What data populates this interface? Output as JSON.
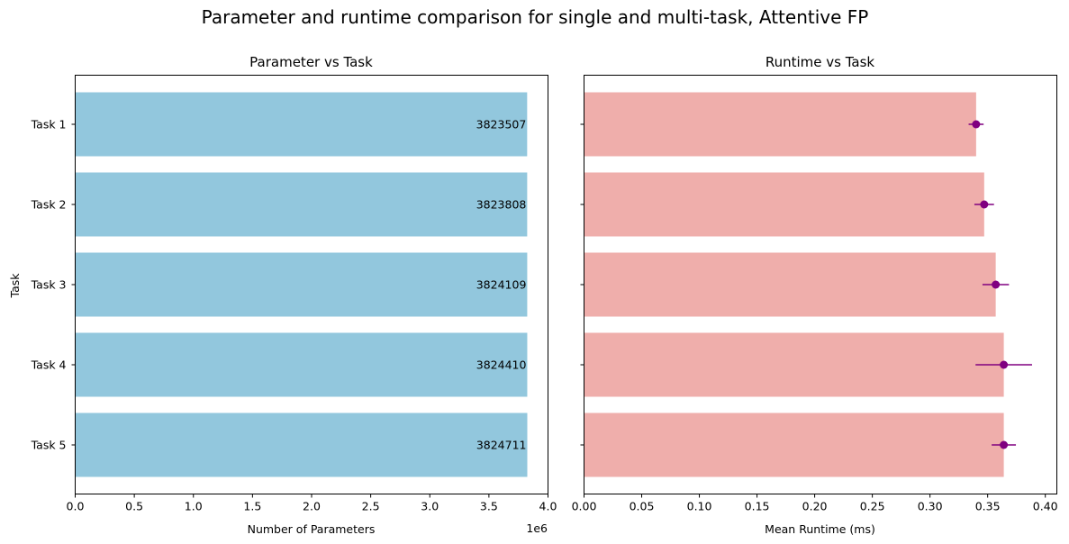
{
  "figure": {
    "suptitle": "Parameter and runtime comparison for single and multi-task, Attentive FP"
  },
  "chart_data": [
    {
      "type": "bar",
      "orientation": "horizontal",
      "title": "Parameter vs Task",
      "xlabel": "Number of Parameters",
      "ylabel": "Task",
      "x_offset_label": "1e6",
      "x_multiplier": 1000000,
      "categories": [
        "Task 1",
        "Task 2",
        "Task 3",
        "Task 4",
        "Task 5"
      ],
      "values": [
        3823507,
        3823808,
        3824109,
        3824410,
        3824711
      ],
      "value_labels": [
        "3823507",
        "3823808",
        "3824109",
        "3824410",
        "3824711"
      ],
      "xlim": [
        0,
        4000000
      ],
      "xticks": [
        0,
        500000,
        1000000,
        1500000,
        2000000,
        2500000,
        3000000,
        3500000,
        4000000
      ],
      "xtick_labels": [
        "0.0",
        "0.5",
        "1.0",
        "1.5",
        "2.0",
        "2.5",
        "3.0",
        "3.5",
        "4.0"
      ],
      "bar_color": "#92c7dd",
      "grid": false
    },
    {
      "type": "bar",
      "orientation": "horizontal",
      "title": "Runtime vs Task",
      "xlabel": "Mean Runtime (ms)",
      "categories": [
        "Task 1",
        "Task 2",
        "Task 3",
        "Task 4",
        "Task 5"
      ],
      "values": [
        0.34,
        0.347,
        0.357,
        0.364,
        0.364
      ],
      "errors": [
        0.0065,
        0.0085,
        0.0115,
        0.0245,
        0.0105
      ],
      "xlim": [
        0,
        0.41
      ],
      "xticks": [
        0.0,
        0.05,
        0.1,
        0.15,
        0.2,
        0.25,
        0.3,
        0.35,
        0.4
      ],
      "xtick_labels": [
        "0.00",
        "0.05",
        "0.10",
        "0.15",
        "0.20",
        "0.25",
        "0.30",
        "0.35",
        "0.40"
      ],
      "bar_color": "#efaeab",
      "errorbar_color": "#800080",
      "shared_y": true,
      "grid": false
    }
  ]
}
